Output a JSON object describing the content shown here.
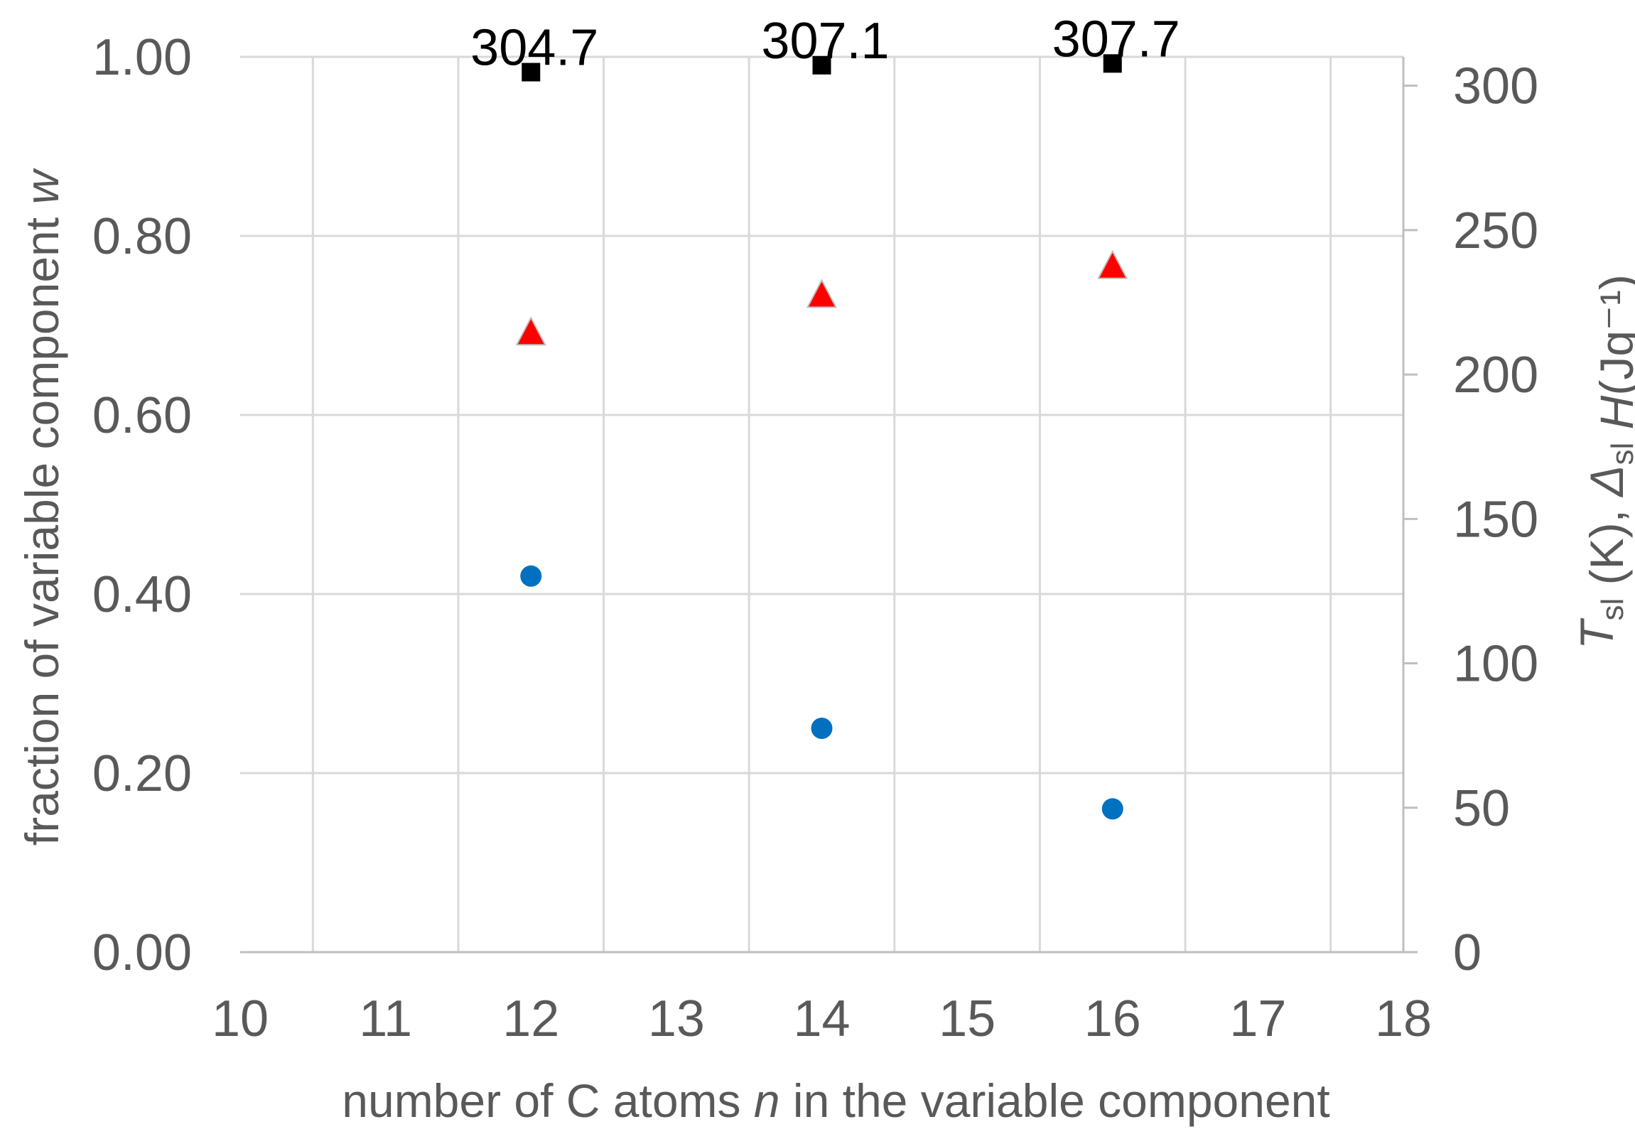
{
  "chart_data": {
    "type": "scatter",
    "x_axis": {
      "label": "number of C atoms n in the variable component",
      "label_parts": [
        {
          "text": "number of C atoms ",
          "italic": false
        },
        {
          "text": "n",
          "italic": true
        },
        {
          "text": " in the variable component",
          "italic": false
        }
      ],
      "range": [
        10,
        18
      ],
      "ticks": [
        "10",
        "11",
        "12",
        "13",
        "14",
        "15",
        "16",
        "17",
        "18"
      ]
    },
    "y_left_axis": {
      "label": "fraction of variable component w",
      "label_parts": [
        {
          "text": "fraction of variable component ",
          "italic": false
        },
        {
          "text": "w",
          "italic": true
        }
      ],
      "range": [
        0,
        1
      ],
      "ticks": [
        "0.00",
        "0.20",
        "0.40",
        "0.60",
        "0.80",
        "1.00"
      ]
    },
    "y_right_axis": {
      "label": "Tsl (K), ΔslH(Jg−1)",
      "label_parts": [
        {
          "text": "T",
          "italic": true,
          "sub": false
        },
        {
          "text": "sl",
          "italic": false,
          "sub": true
        },
        {
          "text": " (K), ",
          "italic": false,
          "sub": false
        },
        {
          "text": "Δ",
          "italic": true,
          "sub": false
        },
        {
          "text": "sl",
          "italic": false,
          "sub": true
        },
        {
          "text": " H",
          "italic": true,
          "sub": false
        },
        {
          "text": "(Jg⁻¹)",
          "italic": false,
          "sub": false
        }
      ],
      "range": [
        0,
        310
      ],
      "ticks": [
        "0",
        "50",
        "100",
        "150",
        "200",
        "250",
        "300"
      ]
    },
    "grid": true,
    "legend": "none",
    "series": [
      {
        "axis": "right",
        "marker": "square",
        "color": "#000000",
        "points": [
          {
            "x": 12,
            "y": 304.7,
            "label": "304.7"
          },
          {
            "x": 14,
            "y": 307.1,
            "label": "307.1"
          },
          {
            "x": 16,
            "y": 307.7,
            "label": "307.7"
          }
        ]
      },
      {
        "axis": "right",
        "marker": "triangle",
        "color": "#ff0000",
        "points": [
          {
            "x": 12,
            "y": 214
          },
          {
            "x": 14,
            "y": 227
          },
          {
            "x": 16,
            "y": 237
          }
        ]
      },
      {
        "axis": "left",
        "marker": "circle",
        "color": "#0070c0",
        "points": [
          {
            "x": 12,
            "y": 0.42
          },
          {
            "x": 14,
            "y": 0.25
          },
          {
            "x": 16,
            "y": 0.16
          }
        ]
      }
    ]
  }
}
